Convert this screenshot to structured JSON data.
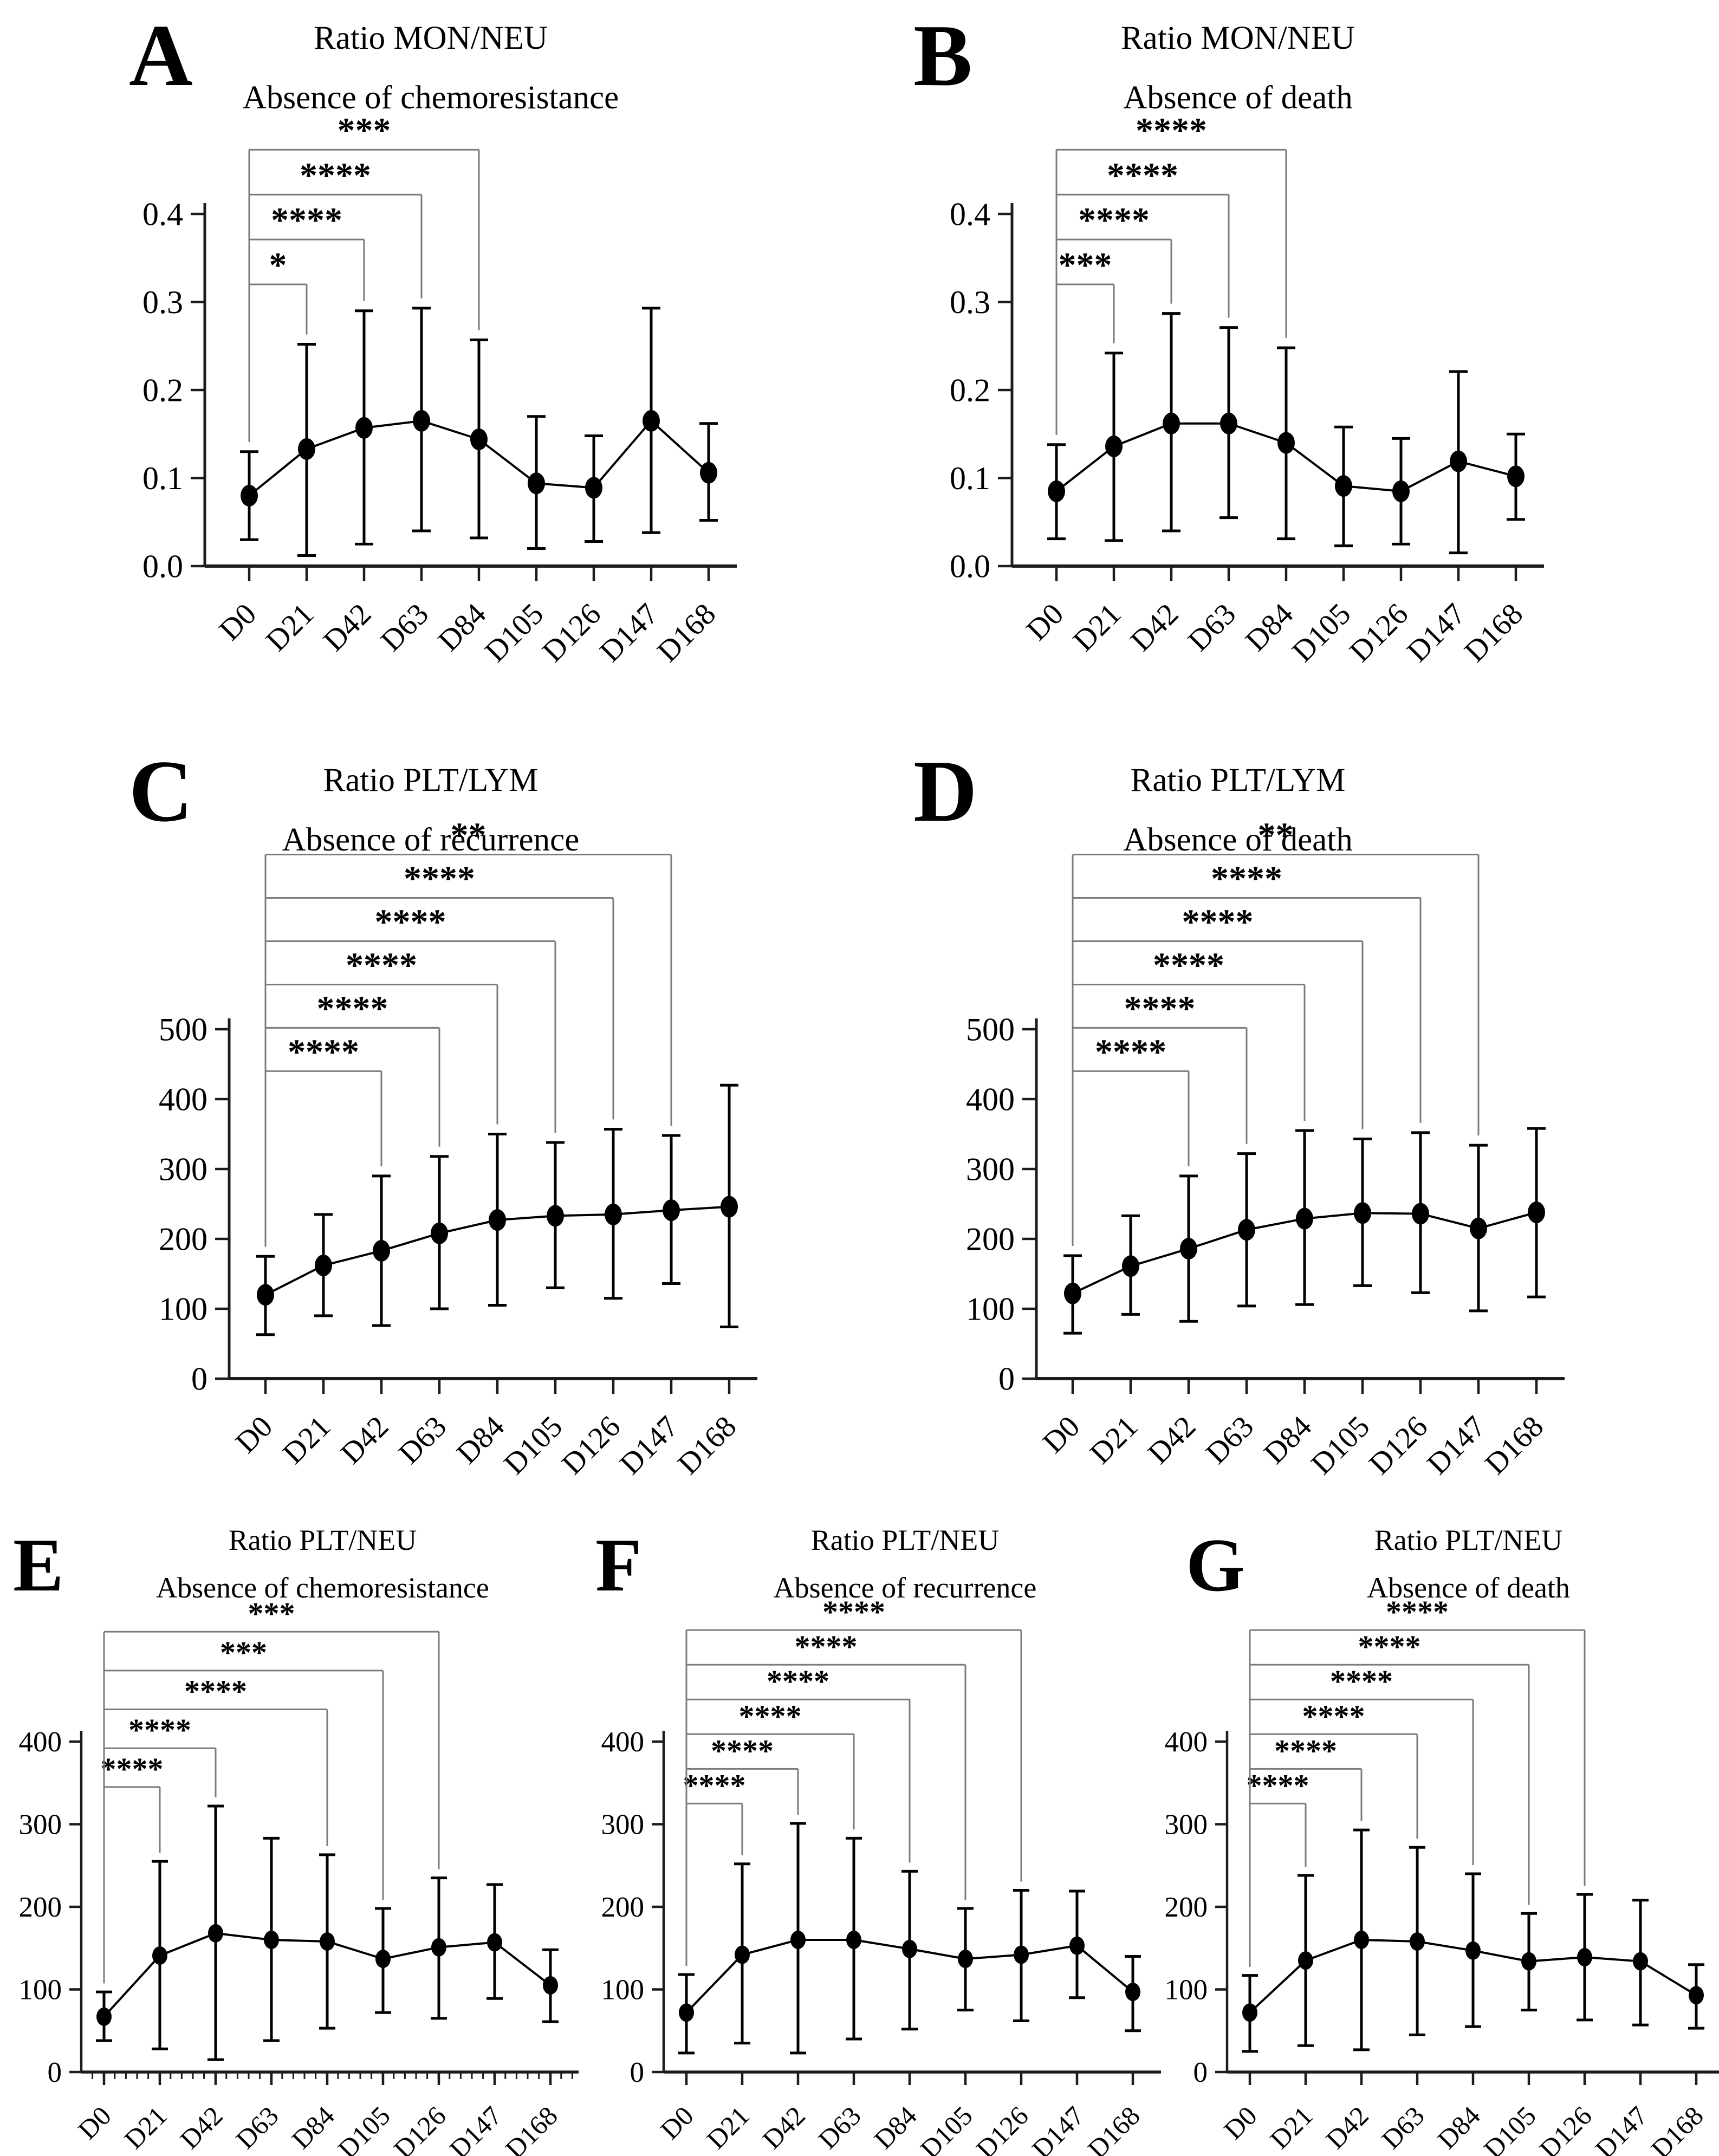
{
  "colors": {
    "data": "#000000",
    "axis": "#1c1c1c",
    "bracket": "#7b7b7b",
    "background": "#ffffff"
  },
  "chart_data": [
    {
      "id": "A",
      "panel_letter": "A",
      "type": "line",
      "title": "Ratio MON/NEU",
      "subtitle": "Absence of chemoresistance",
      "categories": [
        "D0",
        "D21",
        "D42",
        "D63",
        "D84",
        "D105",
        "D126",
        "D147",
        "D168"
      ],
      "means": [
        0.08,
        0.133,
        0.157,
        0.165,
        0.144,
        0.094,
        0.089,
        0.165,
        0.106
      ],
      "err_low": [
        0.03,
        0.012,
        0.025,
        0.04,
        0.032,
        0.02,
        0.028,
        0.038,
        0.052
      ],
      "err_high": [
        0.13,
        0.252,
        0.29,
        0.293,
        0.257,
        0.17,
        0.148,
        0.293,
        0.162
      ],
      "ylim": [
        0,
        0.4
      ],
      "yticks": [
        0,
        0.1,
        0.2,
        0.3,
        0.4
      ],
      "ytick_labels": [
        "0.0",
        "0.1",
        "0.2",
        "0.3",
        "0.4"
      ],
      "grid": "off",
      "legend": "none",
      "significance": [
        {
          "from": "D0",
          "to": "D21",
          "label": "*"
        },
        {
          "from": "D0",
          "to": "D42",
          "label": "****"
        },
        {
          "from": "D0",
          "to": "D63",
          "label": "****"
        },
        {
          "from": "D0",
          "to": "D84",
          "label": "***"
        }
      ]
    },
    {
      "id": "B",
      "panel_letter": "B",
      "type": "line",
      "title": "Ratio MON/NEU",
      "subtitle": "Absence of death",
      "categories": [
        "D0",
        "D21",
        "D42",
        "D63",
        "D84",
        "D105",
        "D126",
        "D147",
        "D168"
      ],
      "means": [
        0.085,
        0.136,
        0.162,
        0.162,
        0.14,
        0.091,
        0.085,
        0.119,
        0.102
      ],
      "err_low": [
        0.031,
        0.029,
        0.04,
        0.055,
        0.031,
        0.023,
        0.025,
        0.015,
        0.053
      ],
      "err_high": [
        0.138,
        0.242,
        0.287,
        0.271,
        0.248,
        0.158,
        0.145,
        0.221,
        0.15
      ],
      "ylim": [
        0,
        0.4
      ],
      "yticks": [
        0,
        0.1,
        0.2,
        0.3,
        0.4
      ],
      "ytick_labels": [
        "0.0",
        "0.1",
        "0.2",
        "0.3",
        "0.4"
      ],
      "grid": "off",
      "legend": "none",
      "significance": [
        {
          "from": "D0",
          "to": "D21",
          "label": "***"
        },
        {
          "from": "D0",
          "to": "D42",
          "label": "****"
        },
        {
          "from": "D0",
          "to": "D63",
          "label": "****"
        },
        {
          "from": "D0",
          "to": "D84",
          "label": "****"
        }
      ]
    },
    {
      "id": "C",
      "panel_letter": "C",
      "type": "line",
      "title": "Ratio PLT/LYM",
      "subtitle": "Absence of recurrence",
      "categories": [
        "D0",
        "D21",
        "D42",
        "D63",
        "D84",
        "D105",
        "D126",
        "D147",
        "D168"
      ],
      "means": [
        120,
        162,
        183,
        208,
        227,
        233,
        235,
        241,
        246
      ],
      "err_low": [
        63,
        90,
        76,
        100,
        105,
        130,
        115,
        136,
        74
      ],
      "err_high": [
        175,
        235,
        290,
        318,
        350,
        338,
        357,
        348,
        420
      ],
      "ylim": [
        0,
        500
      ],
      "yticks": [
        0,
        100,
        200,
        300,
        400,
        500
      ],
      "ytick_labels": [
        "0",
        "100",
        "200",
        "300",
        "400",
        "500"
      ],
      "grid": "off",
      "legend": "none",
      "significance": [
        {
          "from": "D0",
          "to": "D42",
          "label": "****"
        },
        {
          "from": "D0",
          "to": "D63",
          "label": "****"
        },
        {
          "from": "D0",
          "to": "D84",
          "label": "****"
        },
        {
          "from": "D0",
          "to": "D105",
          "label": "****"
        },
        {
          "from": "D0",
          "to": "D126",
          "label": "****"
        },
        {
          "from": "D0",
          "to": "D147",
          "label": "**"
        }
      ]
    },
    {
      "id": "D",
      "panel_letter": "D",
      "type": "line",
      "title": "Ratio PLT/LYM",
      "subtitle": "Absence of death",
      "categories": [
        "D0",
        "D21",
        "D42",
        "D63",
        "D84",
        "D105",
        "D126",
        "D147",
        "D168"
      ],
      "means": [
        122,
        161,
        186,
        213,
        229,
        237,
        236,
        215,
        238
      ],
      "err_low": [
        65,
        92,
        82,
        104,
        106,
        133,
        123,
        97,
        117
      ],
      "err_high": [
        176,
        233,
        290,
        322,
        355,
        343,
        352,
        334,
        358
      ],
      "ylim": [
        0,
        500
      ],
      "yticks": [
        0,
        100,
        200,
        300,
        400,
        500
      ],
      "ytick_labels": [
        "0",
        "100",
        "200",
        "300",
        "400",
        "500"
      ],
      "grid": "off",
      "legend": "none",
      "significance": [
        {
          "from": "D0",
          "to": "D42",
          "label": "****"
        },
        {
          "from": "D0",
          "to": "D63",
          "label": "****"
        },
        {
          "from": "D0",
          "to": "D84",
          "label": "****"
        },
        {
          "from": "D0",
          "to": "D105",
          "label": "****"
        },
        {
          "from": "D0",
          "to": "D126",
          "label": "****"
        },
        {
          "from": "D0",
          "to": "D147",
          "label": "**"
        }
      ]
    },
    {
      "id": "E",
      "panel_letter": "E",
      "type": "line",
      "title": "Ratio PLT/NEU",
      "subtitle": "Absence of chemoresistance",
      "categories": [
        "D0",
        "D21",
        "D42",
        "D63",
        "D84",
        "D105",
        "D126",
        "D147",
        "D168"
      ],
      "means": [
        67,
        141,
        168,
        160,
        158,
        137,
        151,
        157,
        105
      ],
      "err_low": [
        38,
        28,
        15,
        38,
        53,
        72,
        65,
        89,
        61
      ],
      "err_high": [
        97,
        255,
        322,
        283,
        263,
        198,
        235,
        227,
        148
      ],
      "ylim": [
        0,
        400
      ],
      "yticks": [
        0,
        100,
        200,
        300,
        400
      ],
      "ytick_labels": [
        "0",
        "100",
        "200",
        "300",
        "400"
      ],
      "grid": "off",
      "legend": "none",
      "significance": [
        {
          "from": "D0",
          "to": "D21",
          "label": "****"
        },
        {
          "from": "D0",
          "to": "D42",
          "label": "****"
        },
        {
          "from": "D0",
          "to": "D84",
          "label": "****"
        },
        {
          "from": "D0",
          "to": "D105",
          "label": "***"
        },
        {
          "from": "D0",
          "to": "D126",
          "label": "***"
        }
      ]
    },
    {
      "id": "F",
      "panel_letter": "F",
      "type": "line",
      "title": "Ratio PLT/NEU",
      "subtitle": "Absence of recurrence",
      "categories": [
        "D0",
        "D21",
        "D42",
        "D63",
        "D84",
        "D105",
        "D126",
        "D147",
        "D168"
      ],
      "means": [
        72,
        142,
        160,
        160,
        149,
        137,
        142,
        153,
        97
      ],
      "err_low": [
        23,
        35,
        23,
        40,
        52,
        75,
        62,
        90,
        50
      ],
      "err_high": [
        118,
        252,
        301,
        283,
        243,
        198,
        220,
        219,
        140
      ],
      "ylim": [
        0,
        400
      ],
      "yticks": [
        0,
        100,
        200,
        300,
        400
      ],
      "ytick_labels": [
        "0",
        "100",
        "200",
        "300",
        "400"
      ],
      "grid": "off",
      "legend": "none",
      "significance": [
        {
          "from": "D0",
          "to": "D21",
          "label": "****"
        },
        {
          "from": "D0",
          "to": "D42",
          "label": "****"
        },
        {
          "from": "D0",
          "to": "D63",
          "label": "****"
        },
        {
          "from": "D0",
          "to": "D84",
          "label": "****"
        },
        {
          "from": "D0",
          "to": "D105",
          "label": "****"
        },
        {
          "from": "D0",
          "to": "D126",
          "label": "****"
        }
      ]
    },
    {
      "id": "G",
      "panel_letter": "G",
      "type": "line",
      "title": "Ratio PLT/NEU",
      "subtitle": "Absence of death",
      "categories": [
        "D0",
        "D21",
        "D42",
        "D63",
        "D84",
        "D105",
        "D126",
        "D147",
        "D168"
      ],
      "means": [
        72,
        135,
        160,
        158,
        147,
        134,
        139,
        134,
        93
      ],
      "err_low": [
        25,
        32,
        27,
        45,
        55,
        75,
        63,
        57,
        53
      ],
      "err_high": [
        117,
        238,
        293,
        272,
        240,
        192,
        215,
        208,
        130
      ],
      "ylim": [
        0,
        400
      ],
      "yticks": [
        0,
        100,
        200,
        300,
        400
      ],
      "ytick_labels": [
        "0",
        "100",
        "200",
        "300",
        "400"
      ],
      "grid": "off",
      "legend": "none",
      "significance": [
        {
          "from": "D0",
          "to": "D21",
          "label": "****"
        },
        {
          "from": "D0",
          "to": "D42",
          "label": "****"
        },
        {
          "from": "D0",
          "to": "D63",
          "label": "****"
        },
        {
          "from": "D0",
          "to": "D84",
          "label": "****"
        },
        {
          "from": "D0",
          "to": "D105",
          "label": "****"
        },
        {
          "from": "D0",
          "to": "D126",
          "label": "****"
        }
      ]
    }
  ]
}
